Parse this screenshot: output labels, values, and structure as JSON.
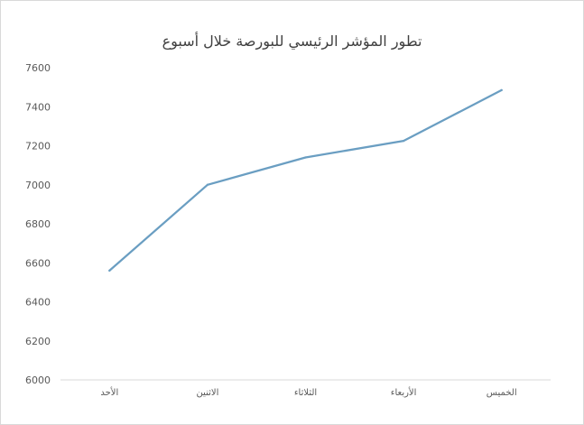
{
  "chart_data": {
    "type": "line",
    "title": "تطور المؤشر الرئيسي للبورصة خلال أسبوع",
    "xlabel": "",
    "ylabel": "",
    "categories": [
      "الأحد",
      "الاثنين",
      "الثلاثاء",
      "الأربعاء",
      "الخميس"
    ],
    "series": [
      {
        "values": [
          6560,
          7000,
          7140,
          7225,
          7485
        ]
      }
    ],
    "ylim": [
      6000,
      7600
    ],
    "yticks": [
      "6000",
      "6200",
      "6400",
      "6600",
      "6800",
      "7000",
      "7200",
      "7400",
      "7600"
    ],
    "grid": false,
    "legend": "none",
    "line_color": "#6a9ec2",
    "axis_color": "#d9d9d9"
  }
}
